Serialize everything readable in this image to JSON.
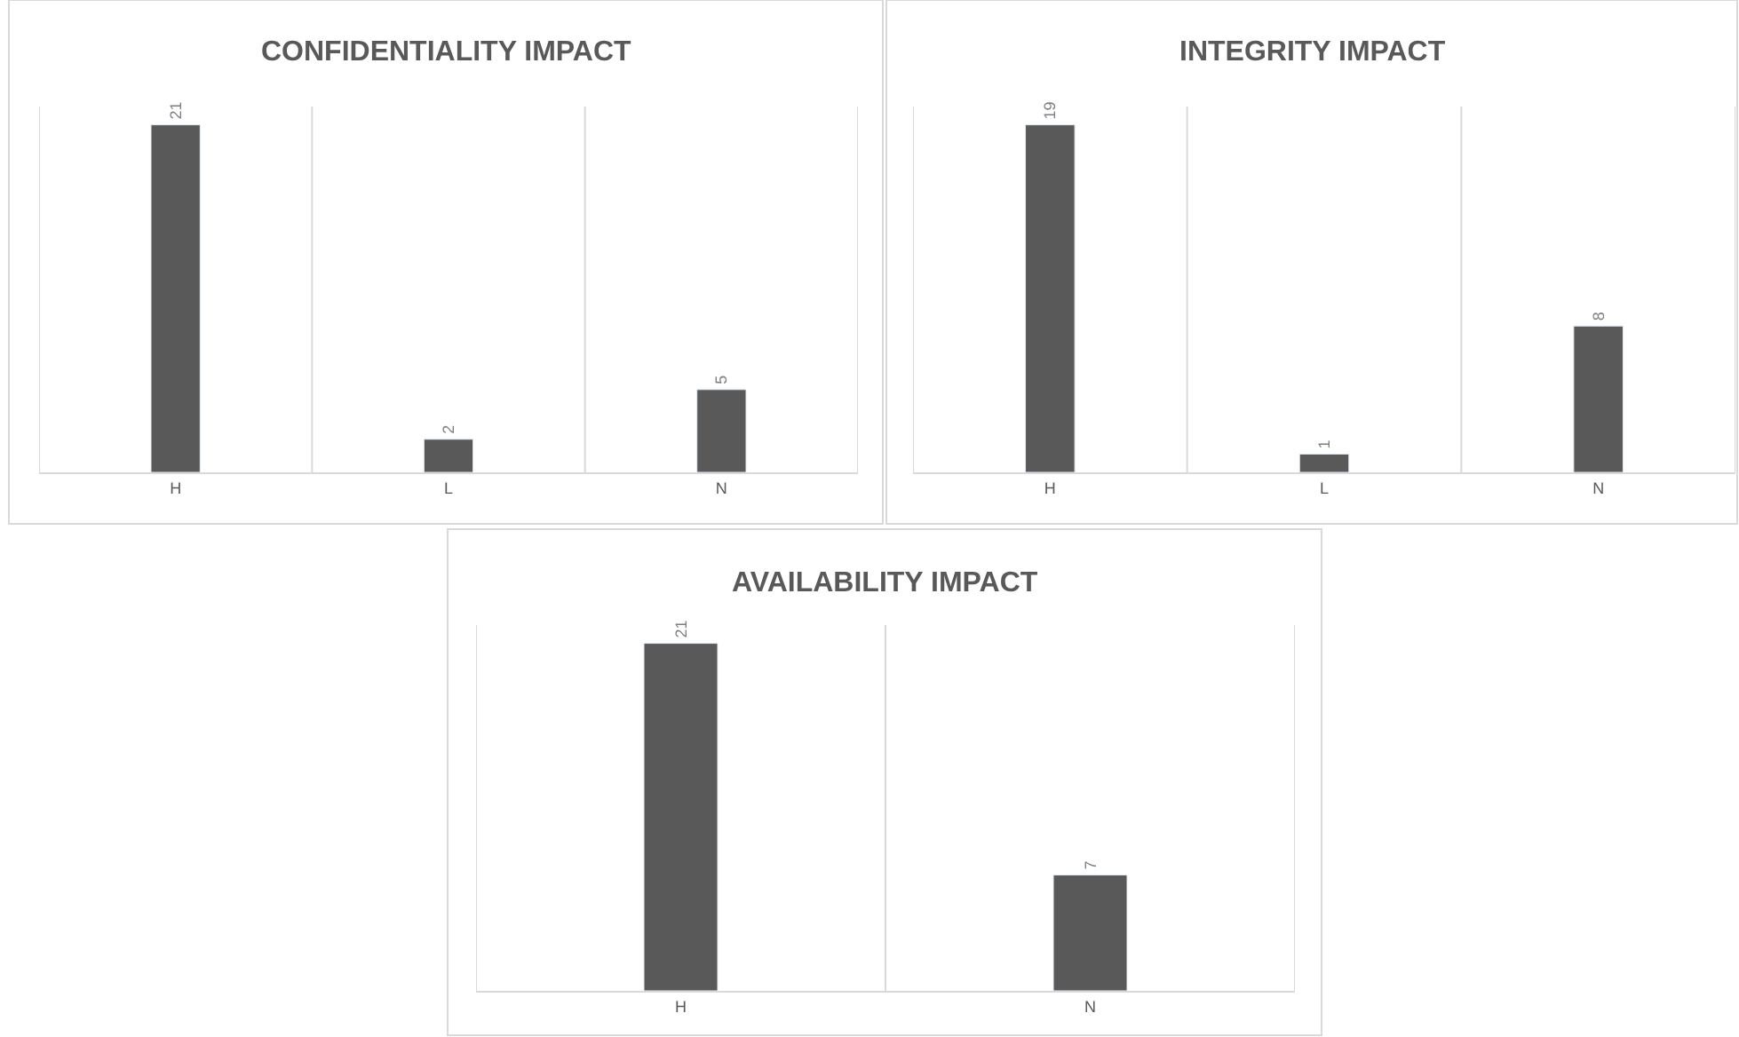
{
  "chart_data": [
    {
      "type": "bar",
      "title": "CONFIDENTIALITY IMPACT",
      "categories": [
        "H",
        "L",
        "N"
      ],
      "values": [
        21,
        2,
        5
      ],
      "color": "#595959",
      "data_labels": true,
      "grid": "x",
      "tick_labels": "x"
    },
    {
      "type": "bar",
      "title": "INTEGRITY IMPACT",
      "categories": [
        "H",
        "L",
        "N"
      ],
      "values": [
        19,
        1,
        8
      ],
      "color": "#595959",
      "data_labels": true,
      "grid": "x",
      "tick_labels": "x"
    },
    {
      "type": "bar",
      "title": "AVAILABILITY IMPACT",
      "categories": [
        "H",
        "N"
      ],
      "values": [
        21,
        7
      ],
      "color": "#595959",
      "data_labels": true,
      "grid": "x",
      "tick_labels": "x"
    }
  ]
}
